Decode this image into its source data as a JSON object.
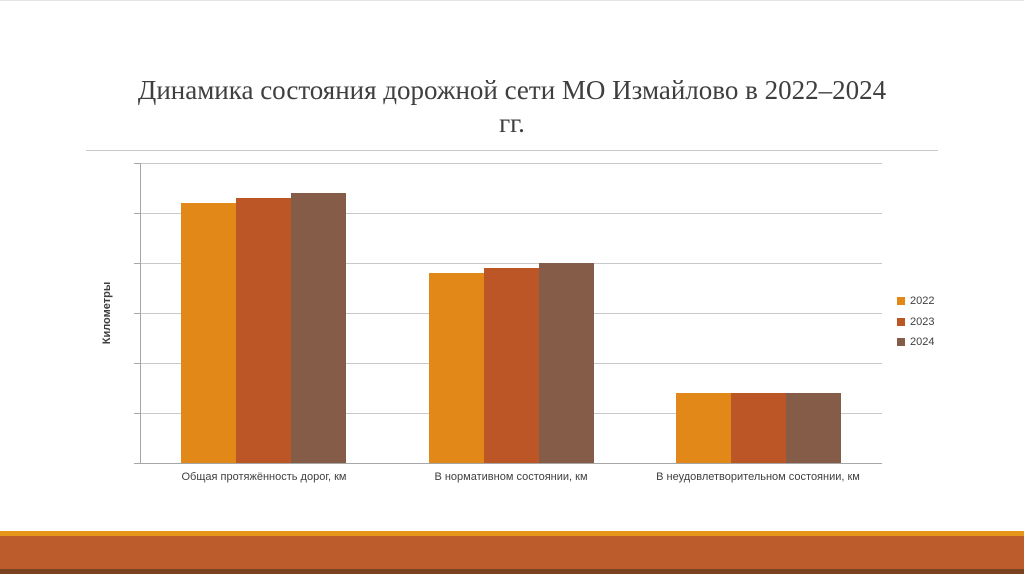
{
  "slide": {
    "title_line1": "Динамика состояния дорожной сети МО Измайлово в 2022–2024",
    "title_line2": "гг."
  },
  "chart_data": {
    "type": "bar",
    "title": "Динамика состояния дорожной сети МО Измайлово в 2022–2024 гг.",
    "categories": [
      "Общая протяжённость дорог, км",
      "В нормативном состоянии, км",
      "В неудовлетворительном состоянии, км"
    ],
    "series": [
      {
        "name": "2022",
        "color": "#e28818",
        "values": [
          52,
          38,
          14
        ]
      },
      {
        "name": "2023",
        "color": "#bc5627",
        "values": [
          53,
          39,
          14
        ]
      },
      {
        "name": "2024",
        "color": "#855c48",
        "values": [
          54,
          40,
          14
        ]
      }
    ],
    "xlabel": "",
    "ylabel": "Километры",
    "ylim": [
      0,
      60
    ],
    "yticks": [
      0,
      10,
      20,
      30,
      40,
      50,
      60
    ],
    "grid": true,
    "legend_position": "right"
  },
  "colors": {
    "grid": "#c9c9c9",
    "axis": "#a6a6a6",
    "text": "#404040",
    "title_text": "#3f3f3f",
    "footer_line": "#e8951c",
    "footer_band": "#bc5b2b",
    "footer_edge": "#7a431f"
  }
}
